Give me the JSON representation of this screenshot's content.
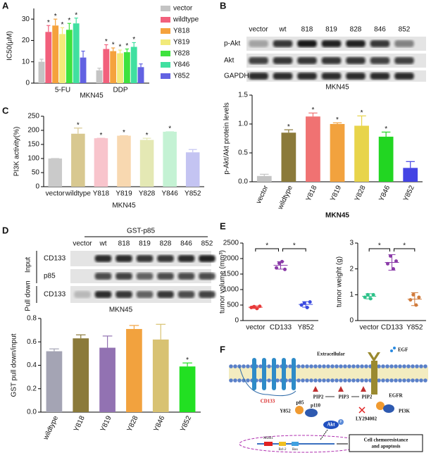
{
  "panel_labels": [
    "A",
    "B",
    "C",
    "D",
    "E",
    "F"
  ],
  "blots": {
    "B": {
      "lanes": [
        "vector",
        "wt",
        "818",
        "819",
        "828",
        "846",
        "852"
      ],
      "rows": [
        "p-Akt",
        "Akt",
        "GAPDH"
      ]
    },
    "D": {
      "header": "GST-p85",
      "lanes": [
        "vector",
        "wt",
        "818",
        "819",
        "828",
        "846",
        "852"
      ],
      "groups": [
        "Input",
        "Pull down"
      ],
      "rows": [
        "CD133",
        "p85",
        "CD133"
      ]
    }
  },
  "diagram": {
    "extracellular": "Extracellular",
    "egf": "EGF",
    "egfr": "EGFR",
    "cd133": "CD133",
    "pip2_left": "PIP2",
    "pip3": "PIP3",
    "pip2_right": "PIP2",
    "y852": "Y852",
    "p85": "p85",
    "p110": "p110",
    "pi3k": "PI3K",
    "ly294002": "LY294002",
    "akt": "Akt",
    "p": "P",
    "mdr1": "MDR1",
    "bcl2": "Bcl-2",
    "bax": "Bax",
    "outcome": [
      "Cell chemoresistance",
      "and apoptosis"
    ]
  },
  "chart_data": [
    {
      "type": "bar",
      "ylabel": "IC50(μM)",
      "xlabel": "MKN45",
      "categories": [
        "5-FU",
        "DDP"
      ],
      "series": [
        {
          "name": "vector",
          "color": "#c4c4c4",
          "values": [
            10,
            6
          ],
          "errors": [
            1.2,
            1
          ],
          "sig": [
            null,
            null
          ]
        },
        {
          "name": "wildtype",
          "color": "#f2607c",
          "values": [
            24,
            16
          ],
          "errors": [
            3,
            2
          ],
          "sig": [
            "*",
            "*"
          ]
        },
        {
          "name": "Y818",
          "color": "#f5a23c",
          "values": [
            27,
            15
          ],
          "errors": [
            3,
            1.5
          ],
          "sig": [
            "*",
            "*"
          ]
        },
        {
          "name": "Y819",
          "color": "#f2ea7a",
          "values": [
            23,
            14
          ],
          "errors": [
            3,
            1.5
          ],
          "sig": [
            "*",
            "*"
          ]
        },
        {
          "name": "Y828",
          "color": "#3ee23e",
          "values": [
            25,
            14.5
          ],
          "errors": [
            3,
            1.5
          ],
          "sig": [
            "*",
            "*"
          ]
        },
        {
          "name": "Y846",
          "color": "#40e0a0",
          "values": [
            28,
            17
          ],
          "errors": [
            2.5,
            2
          ],
          "sig": [
            "*",
            "*"
          ]
        },
        {
          "name": "Y852",
          "color": "#6262e2",
          "values": [
            12,
            7.5
          ],
          "errors": [
            3,
            1.5
          ],
          "sig": [
            null,
            null
          ]
        }
      ],
      "ylim": [
        0,
        35
      ],
      "yticks": [
        0,
        10,
        20,
        30
      ]
    },
    {
      "type": "bar",
      "title": "MKN45",
      "ylabel": "p-Akt/Akt protein levels",
      "xlabel": "MKN45",
      "categories": [
        "vector",
        "wildtype",
        "Y818",
        "Y819",
        "Y828",
        "Y846",
        "Y852"
      ],
      "values": [
        0.1,
        0.85,
        1.13,
        1.0,
        0.97,
        0.78,
        0.24
      ],
      "errors": [
        0.03,
        0.05,
        0.06,
        0.02,
        0.17,
        0.08,
        0.11
      ],
      "colors": [
        "#c4c4c4",
        "#8b7a3a",
        "#f07272",
        "#f2a23e",
        "#e8d44a",
        "#22d622",
        "#4444e4"
      ],
      "sig": [
        null,
        "*",
        "*",
        "*",
        "*",
        "*",
        null
      ],
      "ylim": [
        0,
        1.5
      ],
      "yticks": [
        {
          "value": 0,
          "label": "0.0"
        },
        0.5,
        {
          "value": 1,
          "label": "1.0"
        },
        1.5
      ]
    },
    {
      "type": "bar",
      "ylabel": "PI3K activity(%)",
      "xlabel": "MKN45",
      "categories": [
        "vector",
        "wildtype",
        "Y818",
        "Y819",
        "Y828",
        "Y846",
        "Y852"
      ],
      "values": [
        100,
        188,
        172,
        181,
        166,
        195,
        122
      ],
      "errors": [
        0,
        20,
        0,
        0,
        6,
        0,
        10
      ],
      "colors": [
        "#cacaca",
        "#d8c890",
        "#f8c4cc",
        "#f8d8b0",
        "#e4e8b4",
        "#c4f2d4",
        "#c4c4f2"
      ],
      "sig": [
        null,
        "*",
        "*",
        "*",
        "*",
        "*",
        null
      ],
      "ylim": [
        0,
        250
      ],
      "yticks": [
        0,
        50,
        100,
        150,
        200,
        250
      ]
    },
    {
      "type": "bar",
      "title": "MKN45",
      "ylabel": "GST pull down/input",
      "categories": [
        "wildtype",
        "Y818",
        "Y819",
        "Y828",
        "Y846",
        "Y852"
      ],
      "values": [
        0.52,
        0.63,
        0.55,
        0.71,
        0.62,
        0.39
      ],
      "errors": [
        0.02,
        0.03,
        0.1,
        0.03,
        0.13,
        0.03
      ],
      "colors": [
        "#a4a4b4",
        "#8b7a3a",
        "#9272b2",
        "#f2a23e",
        "#d8c272",
        "#22e022"
      ],
      "sig": [
        null,
        null,
        null,
        null,
        null,
        "*"
      ],
      "ylim": [
        0,
        0.8
      ],
      "yticks": [
        {
          "value": 0,
          "label": "0.0"
        },
        0.2,
        0.4,
        0.6,
        0.8
      ]
    },
    {
      "type": "dot",
      "ylabel": "tumor volume (mm³)",
      "categories": [
        "vector",
        "CD133",
        "Y852"
      ],
      "points": [
        [
          420,
          450,
          390,
          460
        ],
        [
          1700,
          1850,
          1900,
          1650
        ],
        [
          500,
          560,
          420,
          600
        ]
      ],
      "means": [
        430,
        1780,
        520
      ],
      "sds": [
        40,
        120,
        90
      ],
      "colors": [
        "#e83a3a",
        "#8a3aa8",
        "#3a4ae0"
      ],
      "comparisons": [
        {
          "pair": [
            "vector",
            "CD133"
          ],
          "label": "*"
        },
        {
          "pair": [
            "CD133",
            "Y852"
          ],
          "label": "*"
        }
      ],
      "ylim": [
        0,
        2500
      ],
      "yticks": [
        0,
        500,
        1000,
        1500,
        2000,
        2500
      ]
    },
    {
      "type": "dot",
      "ylabel": "tumor weight (g)",
      "categories": [
        "vector",
        "CD133",
        "Y852"
      ],
      "points": [
        [
          0.9,
          1.0,
          0.85,
          1.0
        ],
        [
          2.2,
          2.5,
          2.0,
          2.3
        ],
        [
          0.8,
          1.0,
          0.6,
          0.9
        ]
      ],
      "means": [
        0.94,
        2.25,
        0.83
      ],
      "sds": [
        0.1,
        0.3,
        0.25
      ],
      "colors": [
        "#2ec28a",
        "#8a3aa8",
        "#d07a3a"
      ],
      "comparisons": [
        {
          "pair": [
            "vector",
            "CD133"
          ],
          "label": "*"
        },
        {
          "pair": [
            "CD133",
            "Y852"
          ],
          "label": "*"
        }
      ],
      "ylim": [
        0,
        3
      ],
      "yticks": [
        0,
        1,
        2,
        3
      ]
    }
  ]
}
